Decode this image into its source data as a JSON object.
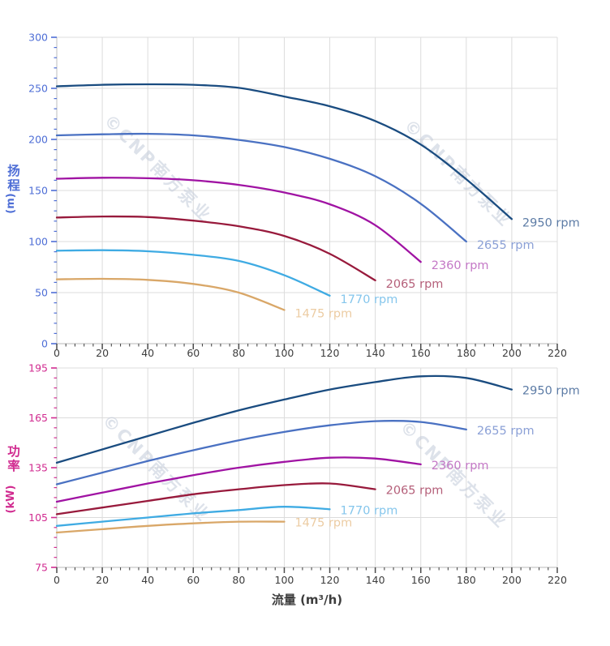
{
  "watermark": {
    "text": "©CNP南方泵业",
    "color": "#c3cbd9"
  },
  "axis_colors": {
    "head_axis": "#4e6ed6",
    "power_axis": "#d12b90",
    "flow_axis": "#3d3d3d"
  },
  "chart_data": [
    {
      "type": "line",
      "panel": "head",
      "xlabel": "",
      "ylabel": "扬程",
      "ylabel_unit": "(m)",
      "xlim": [
        0,
        220
      ],
      "ylim": [
        0,
        300
      ],
      "x_major": 20,
      "x_minor": 4,
      "y_major": 50,
      "y_minor": 10,
      "grid": true,
      "legend_position": "curve-end-labels",
      "axis_label_color": "#4e6ed6",
      "series": [
        {
          "name": "2950 rpm",
          "color": "#1a4c80",
          "label_color": "#5d7ca6",
          "x": [
            0,
            20,
            40,
            60,
            80,
            100,
            120,
            140,
            160,
            180,
            200
          ],
          "y": [
            252,
            253.5,
            254,
            253.5,
            250.5,
            242,
            232.5,
            218,
            195,
            161,
            122
          ]
        },
        {
          "name": "2655 rpm",
          "color": "#4a71c2",
          "label_color": "#8ba0d6",
          "x": [
            0,
            20,
            40,
            60,
            80,
            100,
            120,
            140,
            160,
            180
          ],
          "y": [
            204,
            205,
            205.5,
            204,
            199.5,
            192.5,
            181,
            164,
            137,
            100
          ]
        },
        {
          "name": "2360 rpm",
          "color": "#a013a3",
          "label_color": "#c478c6",
          "x": [
            0,
            20,
            40,
            60,
            80,
            100,
            120,
            140,
            160
          ],
          "y": [
            161.5,
            162.5,
            162,
            160,
            155.5,
            148,
            136.5,
            116,
            80
          ]
        },
        {
          "name": "2065 rpm",
          "color": "#981a3c",
          "label_color": "#b5607a",
          "x": [
            0,
            20,
            40,
            60,
            80,
            100,
            120,
            140
          ],
          "y": [
            123.5,
            124.5,
            124,
            120.5,
            115,
            105.5,
            88,
            62
          ]
        },
        {
          "name": "1770 rpm",
          "color": "#3fabe3",
          "label_color": "#85c6ec",
          "x": [
            0,
            20,
            40,
            60,
            80,
            100,
            120
          ],
          "y": [
            91,
            91.5,
            90.5,
            87,
            81,
            67,
            47
          ]
        },
        {
          "name": "1475 rpm",
          "color": "#d9a768",
          "label_color": "#ecccA3",
          "x": [
            0,
            20,
            40,
            60,
            80,
            100
          ],
          "y": [
            63,
            63.5,
            62.5,
            58.5,
            50,
            33
          ]
        }
      ]
    },
    {
      "type": "line",
      "panel": "power",
      "xlabel": "流量 (m³/h)",
      "ylabel": "功率",
      "ylabel_unit": "(kW)",
      "xlim": [
        0,
        220
      ],
      "ylim": [
        75,
        195
      ],
      "x_major": 20,
      "x_minor": 4,
      "y_major": 30,
      "y_minor": 6,
      "grid": true,
      "legend_position": "curve-end-labels",
      "axis_label_color": "#d12b90",
      "series": [
        {
          "name": "2950 rpm",
          "color": "#1a4c80",
          "label_color": "#5d7ca6",
          "x": [
            0,
            20,
            40,
            60,
            80,
            100,
            120,
            140,
            160,
            180,
            200
          ],
          "y": [
            138,
            146,
            154,
            162,
            169.5,
            176,
            182,
            186.5,
            190,
            189,
            182
          ]
        },
        {
          "name": "2655 rpm",
          "color": "#4a71c2",
          "label_color": "#8ba0d6",
          "x": [
            0,
            20,
            40,
            60,
            80,
            100,
            120,
            140,
            160,
            180
          ],
          "y": [
            125,
            132,
            139,
            145.5,
            151.5,
            156.5,
            160.5,
            163,
            162.5,
            158
          ]
        },
        {
          "name": "2360 rpm",
          "color": "#a013a3",
          "label_color": "#c478c6",
          "x": [
            0,
            20,
            40,
            60,
            80,
            100,
            120,
            140,
            160
          ],
          "y": [
            114.5,
            120,
            125.5,
            130.5,
            135,
            138.5,
            141,
            140.5,
            137
          ]
        },
        {
          "name": "2065 rpm",
          "color": "#981a3c",
          "label_color": "#b5607a",
          "x": [
            0,
            20,
            40,
            60,
            80,
            100,
            120,
            140
          ],
          "y": [
            107,
            111,
            115,
            119,
            122,
            124.5,
            125.5,
            122
          ]
        },
        {
          "name": "1770 rpm",
          "color": "#3fabe3",
          "label_color": "#85c6ec",
          "x": [
            0,
            20,
            40,
            60,
            80,
            100,
            120
          ],
          "y": [
            100,
            102.5,
            105,
            107.5,
            109.5,
            111.5,
            110
          ]
        },
        {
          "name": "1475 rpm",
          "color": "#d9a768",
          "label_color": "#ecccA3",
          "x": [
            0,
            20,
            40,
            60,
            80,
            100
          ],
          "y": [
            96,
            98,
            100,
            101.5,
            102.5,
            102.5
          ]
        }
      ]
    }
  ]
}
